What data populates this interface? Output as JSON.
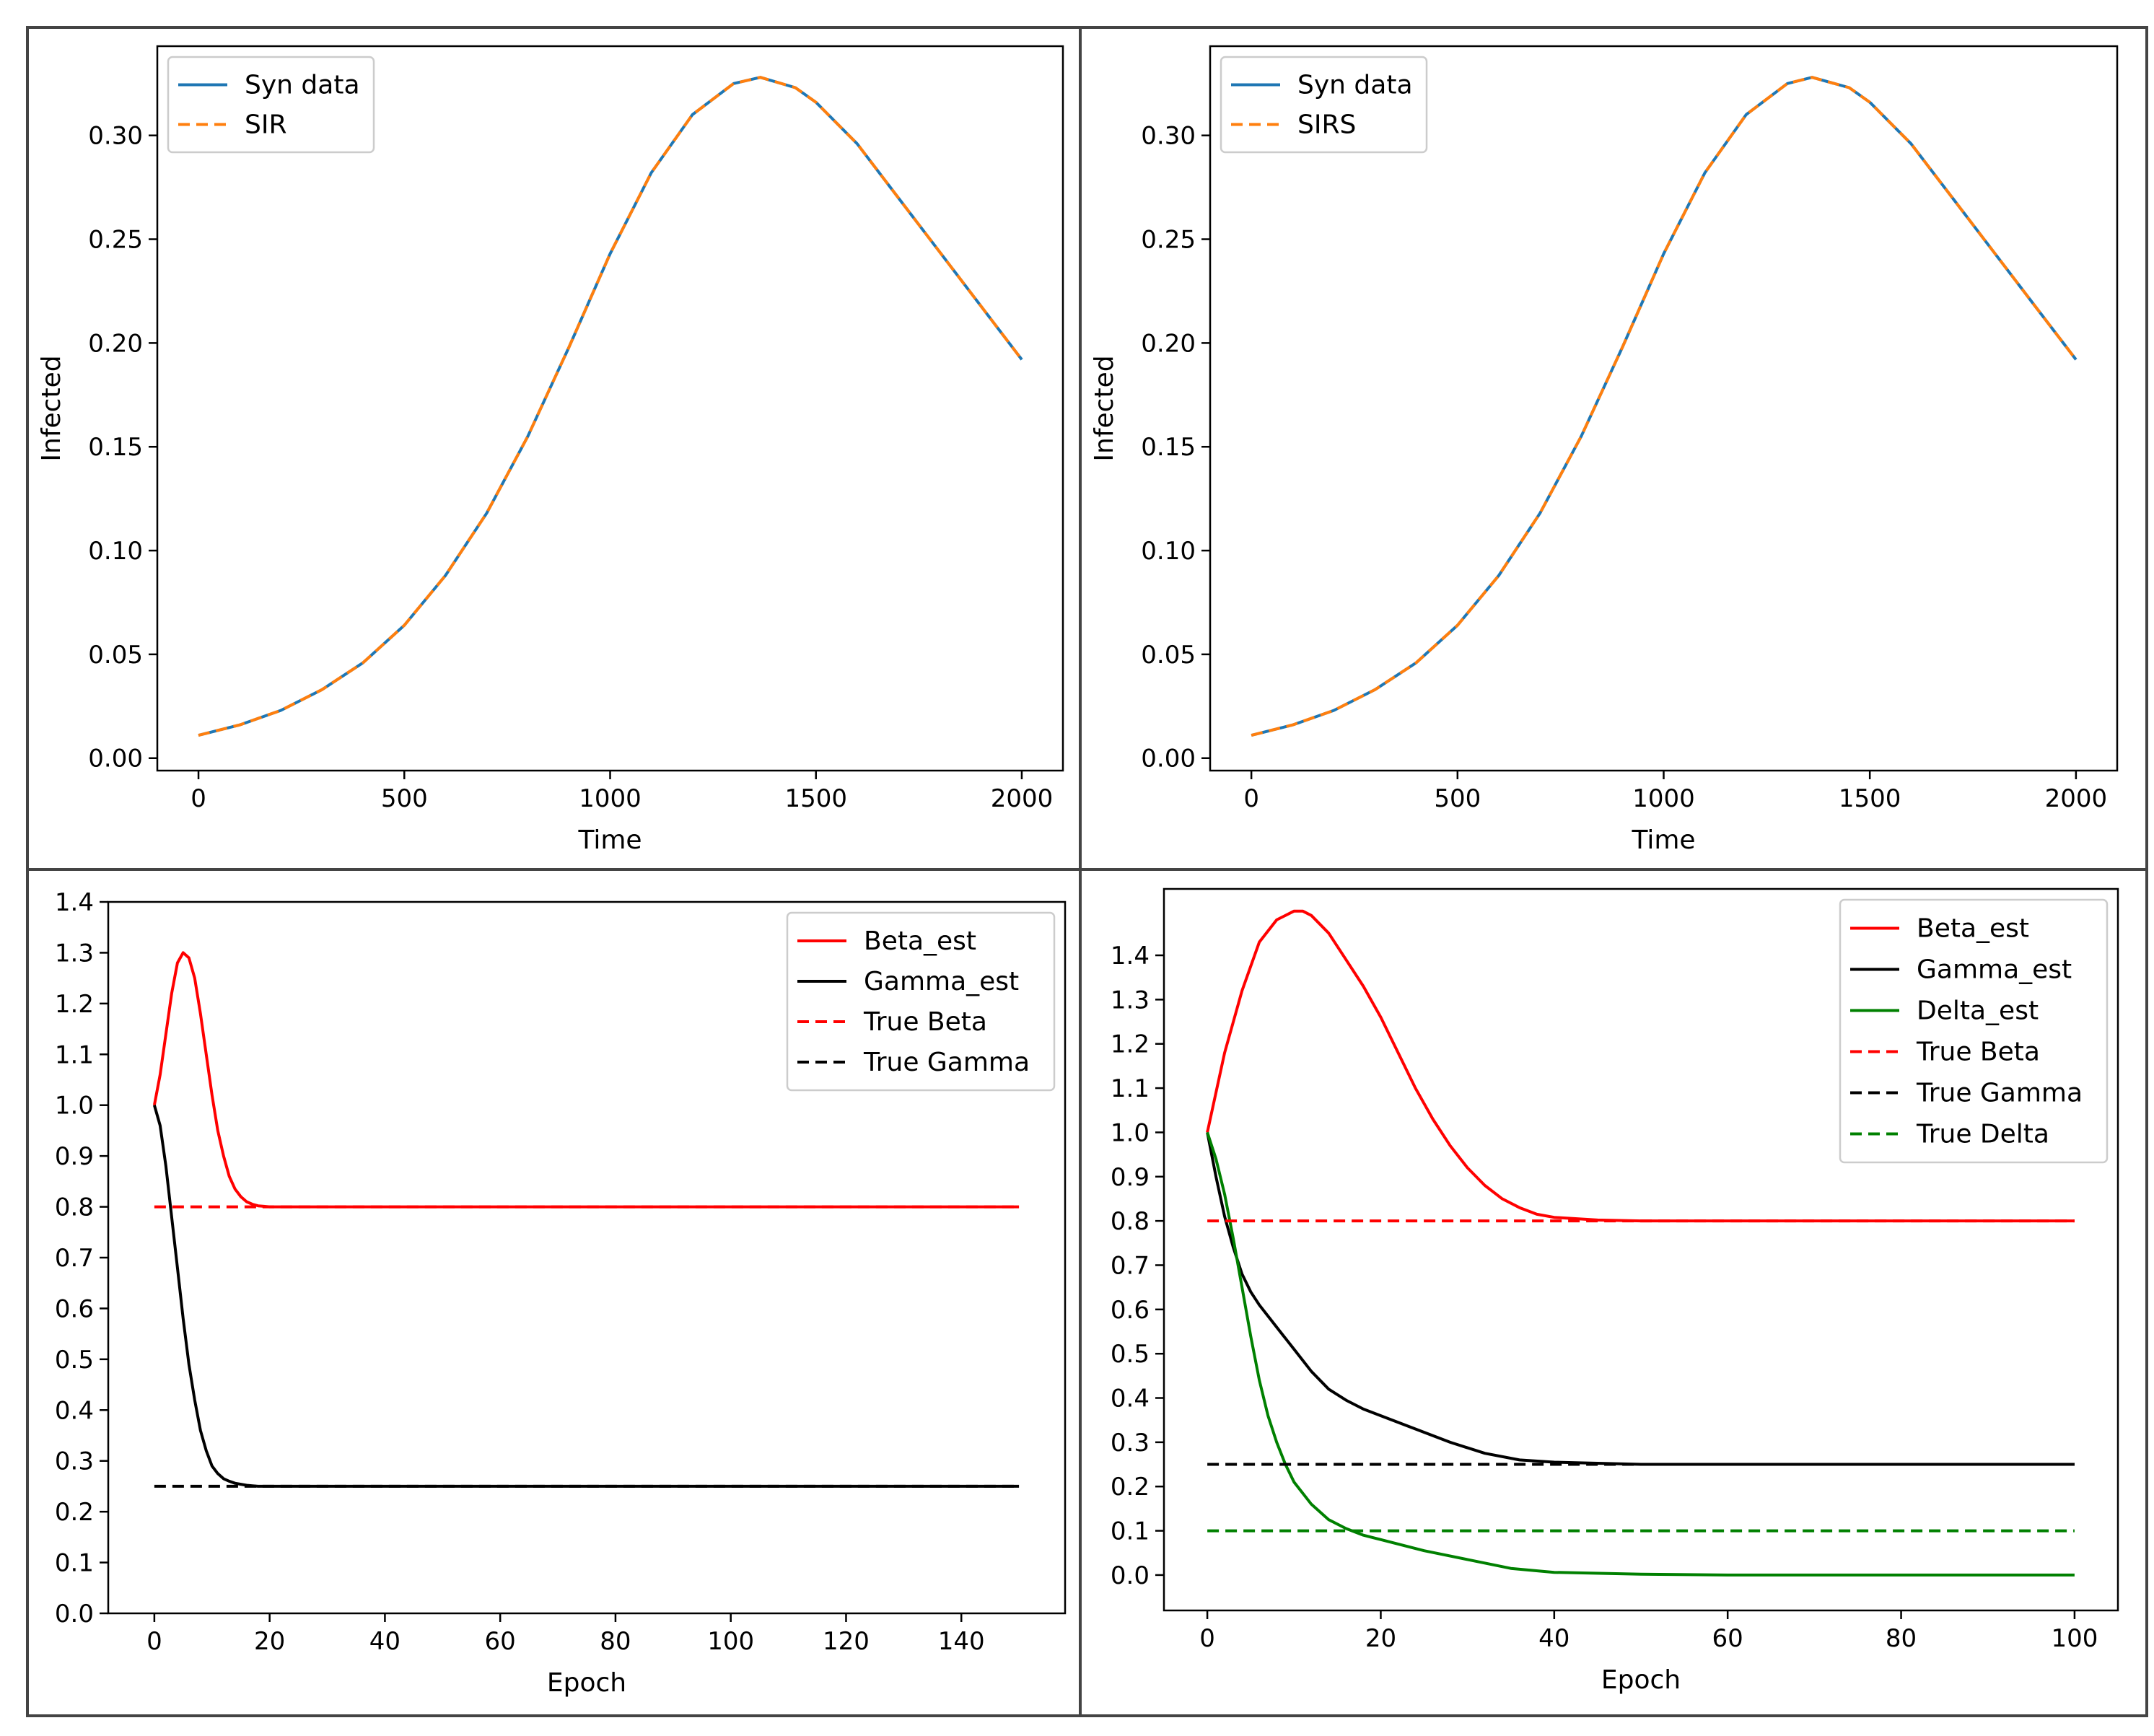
{
  "chart_data": [
    {
      "type": "line",
      "xlabel": "Time",
      "ylabel": "Infected",
      "xlim": [
        -100,
        2100
      ],
      "ylim": [
        -0.006,
        0.343
      ],
      "xticks": [
        0,
        500,
        1000,
        1500,
        2000
      ],
      "yticks": [
        0.0,
        0.05,
        0.1,
        0.15,
        0.2,
        0.25,
        0.3
      ],
      "ytick_labels": [
        "0.00",
        "0.05",
        "0.10",
        "0.15",
        "0.20",
        "0.25",
        "0.30"
      ],
      "legend": "top-left",
      "series": [
        {
          "name": "Syn data",
          "color": "#1f77b4",
          "style": "solid",
          "x": [
            0,
            100,
            200,
            300,
            400,
            500,
            600,
            700,
            800,
            900,
            1000,
            1100,
            1200,
            1300,
            1365,
            1450,
            1500,
            1600,
            1700,
            1800,
            1900,
            2000
          ],
          "y": [
            0.011,
            0.016,
            0.023,
            0.033,
            0.046,
            0.064,
            0.088,
            0.118,
            0.155,
            0.198,
            0.243,
            0.282,
            0.31,
            0.325,
            0.328,
            0.323,
            0.316,
            0.296,
            0.27,
            0.244,
            0.218,
            0.192
          ]
        },
        {
          "name": "SIR",
          "color": "#ff7f0e",
          "style": "dashed",
          "x": [
            0,
            100,
            200,
            300,
            400,
            500,
            600,
            700,
            800,
            900,
            1000,
            1100,
            1200,
            1300,
            1365,
            1450,
            1500,
            1600,
            1700,
            1800,
            1900,
            2000
          ],
          "y": [
            0.011,
            0.016,
            0.023,
            0.033,
            0.046,
            0.064,
            0.088,
            0.118,
            0.155,
            0.198,
            0.243,
            0.282,
            0.31,
            0.325,
            0.328,
            0.323,
            0.316,
            0.296,
            0.27,
            0.244,
            0.218,
            0.192
          ]
        }
      ]
    },
    {
      "type": "line",
      "xlabel": "Time",
      "ylabel": "Infected",
      "xlim": [
        -100,
        2100
      ],
      "ylim": [
        -0.006,
        0.343
      ],
      "xticks": [
        0,
        500,
        1000,
        1500,
        2000
      ],
      "yticks": [
        0.0,
        0.05,
        0.1,
        0.15,
        0.2,
        0.25,
        0.3
      ],
      "ytick_labels": [
        "0.00",
        "0.05",
        "0.10",
        "0.15",
        "0.20",
        "0.25",
        "0.30"
      ],
      "legend": "top-left",
      "series": [
        {
          "name": "Syn data",
          "color": "#1f77b4",
          "style": "solid",
          "x": [
            0,
            100,
            200,
            300,
            400,
            500,
            600,
            700,
            800,
            900,
            1000,
            1100,
            1200,
            1300,
            1360,
            1450,
            1500,
            1600,
            1700,
            1800,
            1900,
            2000
          ],
          "y": [
            0.011,
            0.016,
            0.023,
            0.033,
            0.046,
            0.064,
            0.088,
            0.118,
            0.155,
            0.198,
            0.243,
            0.282,
            0.31,
            0.325,
            0.328,
            0.323,
            0.316,
            0.296,
            0.27,
            0.244,
            0.218,
            0.192
          ]
        },
        {
          "name": "SIRS",
          "color": "#ff7f0e",
          "style": "dashed",
          "x": [
            0,
            100,
            200,
            300,
            400,
            500,
            600,
            700,
            800,
            900,
            1000,
            1100,
            1200,
            1300,
            1360,
            1450,
            1500,
            1600,
            1700,
            1800,
            1900,
            2000
          ],
          "y": [
            0.011,
            0.016,
            0.023,
            0.033,
            0.046,
            0.064,
            0.088,
            0.118,
            0.155,
            0.198,
            0.243,
            0.282,
            0.31,
            0.325,
            0.328,
            0.323,
            0.316,
            0.296,
            0.27,
            0.244,
            0.218,
            0.192
          ]
        }
      ]
    },
    {
      "type": "line",
      "xlabel": "Epoch",
      "ylabel": "",
      "xlim": [
        -8,
        158
      ],
      "ylim": [
        0.0,
        1.4
      ],
      "xticks": [
        0,
        20,
        40,
        60,
        80,
        100,
        120,
        140
      ],
      "yticks": [
        0.0,
        0.1,
        0.2,
        0.3,
        0.4,
        0.5,
        0.6,
        0.7,
        0.8,
        0.9,
        1.0,
        1.1,
        1.2,
        1.3,
        1.4
      ],
      "ytick_labels": [
        "0.0",
        "0.1",
        "0.2",
        "0.3",
        "0.4",
        "0.5",
        "0.6",
        "0.7",
        "0.8",
        "0.9",
        "1.0",
        "1.1",
        "1.2",
        "1.3",
        "1.4"
      ],
      "legend": "top-right",
      "series": [
        {
          "name": "Beta_est",
          "color": "#ff0000",
          "style": "solid",
          "x": [
            0,
            1,
            2,
            3,
            4,
            5,
            6,
            7,
            8,
            9,
            10,
            11,
            12,
            13,
            14,
            15,
            16,
            17,
            18,
            19,
            20,
            25,
            30,
            40,
            60,
            80,
            100,
            120,
            140,
            150
          ],
          "y": [
            1.0,
            1.06,
            1.14,
            1.22,
            1.28,
            1.3,
            1.29,
            1.25,
            1.18,
            1.1,
            1.02,
            0.95,
            0.9,
            0.86,
            0.835,
            0.82,
            0.81,
            0.805,
            0.802,
            0.801,
            0.8,
            0.8,
            0.8,
            0.8,
            0.8,
            0.8,
            0.8,
            0.8,
            0.8,
            0.8
          ]
        },
        {
          "name": "Gamma_est",
          "color": "#000000",
          "style": "solid",
          "x": [
            0,
            1,
            2,
            3,
            4,
            5,
            6,
            7,
            8,
            9,
            10,
            11,
            12,
            13,
            14,
            15,
            16,
            17,
            18,
            20,
            22,
            25,
            30,
            40,
            60,
            80,
            100,
            120,
            140,
            150
          ],
          "y": [
            1.0,
            0.96,
            0.88,
            0.78,
            0.68,
            0.58,
            0.49,
            0.42,
            0.36,
            0.32,
            0.29,
            0.275,
            0.265,
            0.26,
            0.256,
            0.254,
            0.252,
            0.251,
            0.25,
            0.25,
            0.25,
            0.25,
            0.25,
            0.25,
            0.25,
            0.25,
            0.25,
            0.25,
            0.25,
            0.25
          ]
        },
        {
          "name": "True Beta",
          "color": "#ff0000",
          "style": "dashed",
          "x": [
            0,
            150
          ],
          "y": [
            0.8,
            0.8
          ]
        },
        {
          "name": "True Gamma",
          "color": "#000000",
          "style": "dashed",
          "x": [
            0,
            150
          ],
          "y": [
            0.25,
            0.25
          ]
        }
      ]
    },
    {
      "type": "line",
      "xlabel": "Epoch",
      "ylabel": "",
      "xlim": [
        -5,
        105
      ],
      "ylim": [
        -0.08,
        1.55
      ],
      "xticks": [
        0,
        20,
        40,
        60,
        80,
        100
      ],
      "yticks": [
        0.0,
        0.1,
        0.2,
        0.3,
        0.4,
        0.5,
        0.6,
        0.7,
        0.8,
        0.9,
        1.0,
        1.1,
        1.2,
        1.3,
        1.4
      ],
      "ytick_labels": [
        "0.0",
        "0.1",
        "0.2",
        "0.3",
        "0.4",
        "0.5",
        "0.6",
        "0.7",
        "0.8",
        "0.9",
        "1.0",
        "1.1",
        "1.2",
        "1.3",
        "1.4"
      ],
      "legend": "top-right",
      "series": [
        {
          "name": "Beta_est",
          "color": "#ff0000",
          "style": "solid",
          "x": [
            0,
            2,
            4,
            6,
            8,
            10,
            11,
            12,
            14,
            16,
            18,
            20,
            22,
            24,
            26,
            28,
            30,
            32,
            34,
            36,
            38,
            40,
            45,
            50,
            60,
            70,
            80,
            90,
            100
          ],
          "y": [
            1.0,
            1.18,
            1.32,
            1.43,
            1.48,
            1.5,
            1.5,
            1.49,
            1.45,
            1.39,
            1.33,
            1.26,
            1.18,
            1.1,
            1.03,
            0.97,
            0.92,
            0.88,
            0.85,
            0.83,
            0.815,
            0.808,
            0.802,
            0.8,
            0.8,
            0.8,
            0.8,
            0.8,
            0.8
          ]
        },
        {
          "name": "Gamma_est",
          "color": "#000000",
          "style": "solid",
          "x": [
            0,
            1,
            2,
            3,
            4,
            5,
            6,
            8,
            10,
            12,
            14,
            16,
            18,
            20,
            24,
            28,
            32,
            36,
            40,
            50,
            60,
            70,
            80,
            90,
            100
          ],
          "y": [
            1.0,
            0.9,
            0.81,
            0.74,
            0.68,
            0.64,
            0.61,
            0.56,
            0.51,
            0.46,
            0.42,
            0.395,
            0.375,
            0.36,
            0.33,
            0.3,
            0.275,
            0.26,
            0.255,
            0.25,
            0.25,
            0.25,
            0.25,
            0.25,
            0.25
          ]
        },
        {
          "name": "Delta_est",
          "color": "#008000",
          "style": "solid",
          "x": [
            0,
            1,
            2,
            3,
            4,
            5,
            6,
            7,
            8,
            9,
            10,
            12,
            14,
            16,
            18,
            20,
            25,
            30,
            35,
            40,
            50,
            60,
            70,
            80,
            90,
            100
          ],
          "y": [
            1.0,
            0.94,
            0.86,
            0.76,
            0.65,
            0.54,
            0.44,
            0.36,
            0.3,
            0.25,
            0.21,
            0.16,
            0.125,
            0.105,
            0.09,
            0.08,
            0.055,
            0.035,
            0.015,
            0.006,
            0.002,
            0.0,
            0.0,
            0.0,
            0.0,
            0.0
          ]
        },
        {
          "name": "True Beta",
          "color": "#ff0000",
          "style": "dashed",
          "x": [
            0,
            100
          ],
          "y": [
            0.8,
            0.8
          ]
        },
        {
          "name": "True Gamma",
          "color": "#000000",
          "style": "dashed",
          "x": [
            0,
            100
          ],
          "y": [
            0.25,
            0.25
          ]
        },
        {
          "name": "True Delta",
          "color": "#008000",
          "style": "dashed",
          "x": [
            0,
            100
          ],
          "y": [
            0.1,
            0.1
          ]
        }
      ]
    }
  ]
}
